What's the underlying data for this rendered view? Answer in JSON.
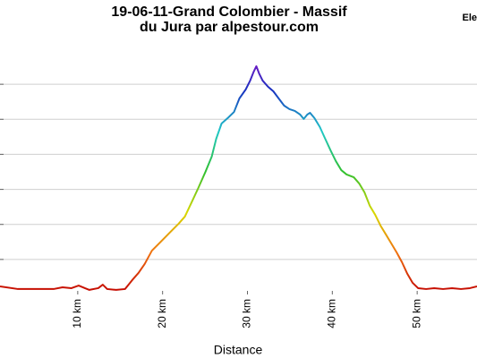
{
  "chart_data": {
    "type": "line",
    "title": "19-06-11-Grand Colombier - Massif",
    "subtitle": "du Jura par alpestour.com",
    "legend_text": "Ele",
    "x_label": "Distance",
    "x": [
      0.84,
      2.95,
      5.05,
      7.16,
      8.21,
      9.26,
      10.11,
      10.84,
      11.37,
      12.42,
      12.95,
      13.47,
      14.53,
      15.58,
      16.42,
      17.16,
      17.89,
      18.74,
      19.79,
      20.84,
      21.89,
      22.63,
      23.47,
      24.21,
      25.05,
      25.79,
      26.32,
      26.95,
      27.68,
      28.42,
      29.05,
      29.79,
      30.32,
      30.74,
      31.05,
      31.37,
      31.79,
      32.42,
      33.05,
      33.68,
      34.32,
      34.95,
      35.58,
      36.21,
      36.63,
      37.05,
      37.37,
      37.89,
      38.53,
      39.16,
      39.79,
      40.42,
      41.05,
      41.68,
      42.53,
      43.16,
      43.79,
      44.42,
      45.05,
      45.68,
      46.32,
      46.95,
      47.58,
      48.21,
      48.84,
      49.47,
      50.11,
      51.05,
      52.0,
      53.05,
      54.11,
      55.16,
      56.21,
      57.05
    ],
    "series": [
      {
        "values": [
          246,
          231,
          231,
          231,
          241,
          236,
          251,
          236,
          226,
          236,
          256,
          231,
          226,
          231,
          282,
          323,
          374,
          450,
          501,
          553,
          604,
          645,
          731,
          808,
          900,
          987,
          1089,
          1176,
          1207,
          1242,
          1319,
          1370,
          1421,
          1472,
          1503,
          1462,
          1421,
          1386,
          1360,
          1319,
          1278,
          1258,
          1248,
          1227,
          1202,
          1227,
          1237,
          1207,
          1156,
          1089,
          1023,
          961,
          910,
          885,
          869,
          834,
          783,
          706,
          655,
          593,
          542,
          491,
          440,
          384,
          318,
          266,
          236,
          231,
          236,
          231,
          236,
          231,
          236,
          246
        ]
      }
    ],
    "color_scale": [
      "#c00000",
      "#f07010",
      "#d8d800",
      "#30c030",
      "#20c8c8",
      "#1830c0",
      "#a010c8"
    ],
    "xlim": [
      0.84,
      57.05
    ],
    "ylim": [
      200,
      1600
    ],
    "xticks": [
      {
        "value": 10,
        "label": "10 km"
      },
      {
        "value": 20,
        "label": "20 km"
      },
      {
        "value": 30,
        "label": "30 km"
      },
      {
        "value": 40,
        "label": "40 km"
      },
      {
        "value": 50,
        "label": "50 km"
      }
    ],
    "yticks": [
      400,
      600,
      800,
      1000,
      1200,
      1400
    ],
    "grid": true
  }
}
